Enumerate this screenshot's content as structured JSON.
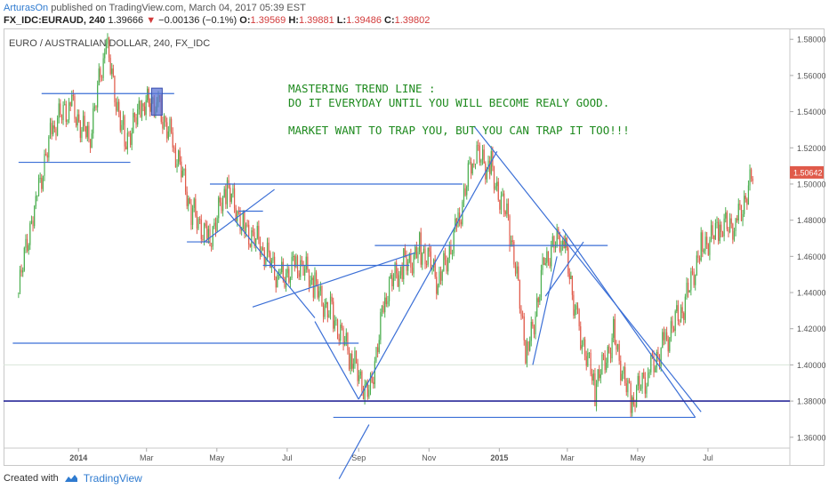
{
  "header": {
    "user": "ArturasOn",
    "published": "published on TradingView.com, March 04, 2017 05:39 EST",
    "symbol": "FX_IDC:EURAUD, 240",
    "last": "1.39666",
    "change": "−0.00136 (−0.1%)",
    "o_label": "O:",
    "o_val": "1.39569",
    "h_label": "H:",
    "h_val": "1.39881",
    "l_label": "L:",
    "l_val": "1.39486",
    "c_label": "C:",
    "c_val": "1.39802"
  },
  "chart_title": "EURO / AUSTRALIAN DOLLAR, 240, FX_IDC",
  "annotation": {
    "line1": "MASTERING TREND LINE :",
    "line2": "DO IT EVERYDAY UNTIL YOU WILL BECOME REALY GOOD.",
    "line3": "MARKET WANT TO TRAP YOU, BUT YOU CAN TRAP IT TOO!!!"
  },
  "footer": {
    "created": "Created with",
    "brand": "TradingView"
  },
  "colors": {
    "up": "#4caf50",
    "down": "#e05a4a",
    "trendline": "#3b6fd6",
    "support": "#2a2a9a",
    "annotation": "#1e8a1e",
    "price_tag": "#e05a4a"
  },
  "chart_data": {
    "type": "line",
    "title": "EURO / AUSTRALIAN DOLLAR, 240, FX_IDC",
    "x_ticks": [
      "2014",
      "Mar",
      "May",
      "Jul",
      "Sep",
      "Nov",
      "2015",
      "Mar",
      "May",
      "Jul"
    ],
    "y_ticks": [
      "1.58000",
      "1.56000",
      "1.54000",
      "1.52000",
      "1.50000",
      "1.48000",
      "1.46000",
      "1.44000",
      "1.42000",
      "1.40000",
      "1.38000",
      "1.36000"
    ],
    "ylim": [
      1.354,
      1.586
    ],
    "last_price": "1.50642",
    "x": [
      "2013-11-10",
      "2013-11-25",
      "2013-12-10",
      "2013-12-25",
      "2014-01-10",
      "2014-01-25",
      "2014-02-10",
      "2014-02-25",
      "2014-03-10",
      "2014-03-25",
      "2014-04-10",
      "2014-04-25",
      "2014-05-10",
      "2014-05-25",
      "2014-06-10",
      "2014-06-25",
      "2014-07-10",
      "2014-07-25",
      "2014-08-10",
      "2014-08-25",
      "2014-09-10",
      "2014-09-25",
      "2014-10-10",
      "2014-10-25",
      "2014-11-10",
      "2014-11-25",
      "2014-12-10",
      "2014-12-25",
      "2015-01-10",
      "2015-01-25",
      "2015-02-10",
      "2015-02-25",
      "2015-03-10",
      "2015-03-25",
      "2015-04-10",
      "2015-04-25",
      "2015-05-10",
      "2015-05-25",
      "2015-06-10",
      "2015-06-25",
      "2015-07-10",
      "2015-07-25",
      "2015-08-10"
    ],
    "series": [
      {
        "values": [
          1.44,
          1.495,
          1.53,
          1.545,
          1.525,
          1.575,
          1.525,
          1.54,
          1.548,
          1.52,
          1.483,
          1.472,
          1.495,
          1.478,
          1.462,
          1.448,
          1.458,
          1.442,
          1.428,
          1.402,
          1.385,
          1.44,
          1.455,
          1.465,
          1.445,
          1.478,
          1.515,
          1.51,
          1.475,
          1.405,
          1.46,
          1.47,
          1.425,
          1.385,
          1.418,
          1.378,
          1.395,
          1.415,
          1.43,
          1.468,
          1.472,
          1.48,
          1.505
        ]
      }
    ],
    "trend_lines": [
      {
        "from": [
          "2013-11-30",
          1.55
        ],
        "to": [
          "2014-03-25",
          1.55
        ]
      },
      {
        "from": [
          "2013-11-10",
          1.512
        ],
        "to": [
          "2014-02-15",
          1.512
        ]
      },
      {
        "from": [
          "2014-04-25",
          1.5
        ],
        "to": [
          "2014-11-30",
          1.5
        ]
      },
      {
        "from": [
          "2014-04-05",
          1.468
        ],
        "to": [
          "2014-04-25",
          1.468
        ]
      },
      {
        "from": [
          "2014-06-10",
          1.455
        ],
        "to": [
          "2014-10-15",
          1.455
        ]
      },
      {
        "from": [
          "2014-09-15",
          1.466
        ],
        "to": [
          "2015-04-05",
          1.466
        ]
      },
      {
        "from": [
          "2013-11-05",
          1.412
        ],
        "to": [
          "2014-09-01",
          1.412
        ]
      },
      {
        "from": [
          "2014-08-10",
          1.371
        ],
        "to": [
          "2015-06-20",
          1.371
        ]
      },
      {
        "from": [
          "2014-08-15",
          1.337
        ],
        "to": [
          "2014-09-10",
          1.367
        ]
      },
      {
        "from": [
          "2014-07-25",
          1.424
        ],
        "to": [
          "2014-09-01",
          1.381
        ]
      },
      {
        "from": [
          "2014-05-10",
          1.485
        ],
        "to": [
          "2014-07-25",
          1.426
        ]
      },
      {
        "from": [
          "2014-05-20",
          1.485
        ],
        "to": [
          "2014-06-10",
          1.485
        ]
      },
      {
        "from": [
          "2014-04-20",
          1.468
        ],
        "to": [
          "2014-06-20",
          1.497
        ]
      },
      {
        "from": [
          "2014-06-01",
          1.432
        ],
        "to": [
          "2014-10-20",
          1.462
        ]
      },
      {
        "from": [
          "2014-09-01",
          1.381
        ],
        "to": [
          "2014-12-30",
          1.518
        ]
      },
      {
        "from": [
          "2014-12-10",
          1.532
        ],
        "to": [
          "2015-06-25",
          1.374
        ]
      },
      {
        "from": [
          "2015-02-25",
          1.475
        ],
        "to": [
          "2015-06-20",
          1.371
        ]
      },
      {
        "from": [
          "2015-02-10",
          1.438
        ],
        "to": [
          "2015-03-15",
          1.468
        ]
      },
      {
        "from": [
          "2015-01-30",
          1.4
        ],
        "to": [
          "2015-02-20",
          1.46
        ]
      }
    ],
    "support_line": 1.38
  }
}
